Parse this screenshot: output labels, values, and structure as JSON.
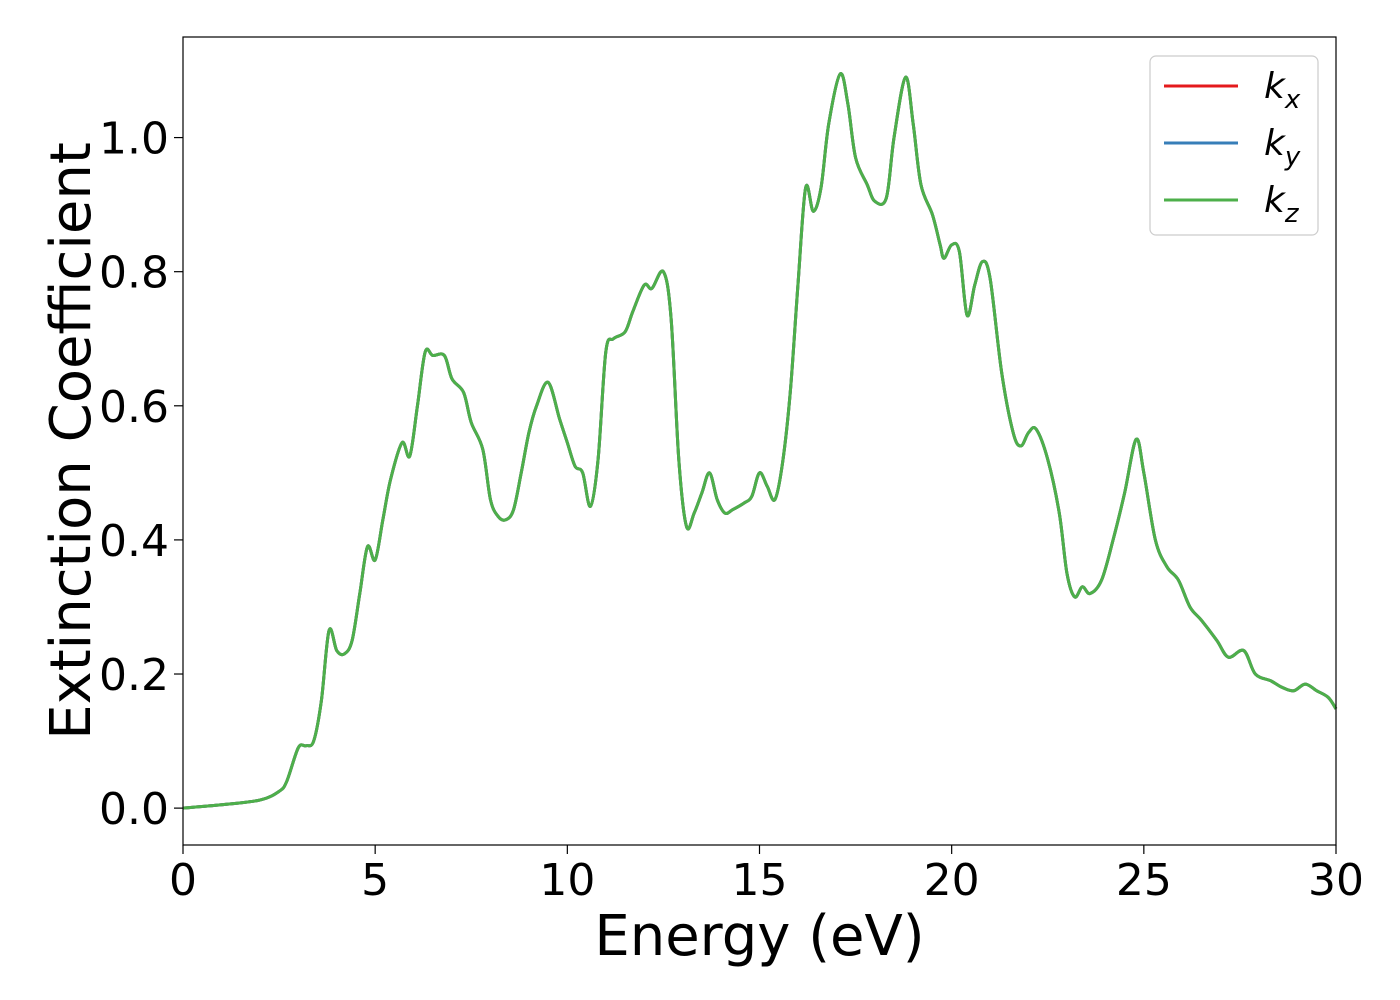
{
  "chart_data": {
    "type": "line",
    "xlabel": "Energy (eV)",
    "ylabel": "Extinction Coefficient",
    "xlim": [
      0,
      30
    ],
    "ylim": [
      -0.055,
      1.15
    ],
    "xticks": [
      0,
      5,
      10,
      15,
      20,
      25,
      30
    ],
    "xtick_labels": [
      "0",
      "5",
      "10",
      "15",
      "20",
      "25",
      "30"
    ],
    "yticks": [
      0.0,
      0.2,
      0.4,
      0.6,
      0.8,
      1.0
    ],
    "ytick_labels": [
      "0.0",
      "0.2",
      "0.4",
      "0.6",
      "0.8",
      "1.0"
    ],
    "grid": false,
    "legend_position": "top-right",
    "series": [
      {
        "name": "k",
        "subscript": "x",
        "color": "#e41a1c"
      },
      {
        "name": "k",
        "subscript": "y",
        "color": "#377eb8"
      },
      {
        "name": "k",
        "subscript": "z",
        "color": "#4daf4a"
      }
    ],
    "x": [
      0,
      1.0,
      2.0,
      2.5,
      2.7,
      3.0,
      3.2,
      3.4,
      3.6,
      3.8,
      4.0,
      4.2,
      4.4,
      4.6,
      4.8,
      5.0,
      5.2,
      5.4,
      5.7,
      5.9,
      6.1,
      6.3,
      6.5,
      6.8,
      7.0,
      7.3,
      7.5,
      7.8,
      8.0,
      8.2,
      8.4,
      8.6,
      8.8,
      9.0,
      9.2,
      9.5,
      9.8,
      10.0,
      10.2,
      10.4,
      10.6,
      10.8,
      11.0,
      11.2,
      11.5,
      11.7,
      12.0,
      12.2,
      12.5,
      12.7,
      12.9,
      13.1,
      13.3,
      13.5,
      13.7,
      13.9,
      14.1,
      14.3,
      14.6,
      14.8,
      15.0,
      15.2,
      15.4,
      15.6,
      15.8,
      16.0,
      16.2,
      16.4,
      16.6,
      16.8,
      17.1,
      17.3,
      17.5,
      17.8,
      18.0,
      18.3,
      18.5,
      18.8,
      19.0,
      19.2,
      19.5,
      19.7,
      19.8,
      20.0,
      20.2,
      20.4,
      20.6,
      20.8,
      21.0,
      21.3,
      21.6,
      21.8,
      22.0,
      22.2,
      22.5,
      22.8,
      23.0,
      23.2,
      23.4,
      23.6,
      23.9,
      24.2,
      24.5,
      24.8,
      25.0,
      25.3,
      25.6,
      25.9,
      26.2,
      26.5,
      26.9,
      27.2,
      27.6,
      27.9,
      28.3,
      28.6,
      28.9,
      29.2,
      29.5,
      29.8,
      30.0
    ],
    "y": [
      0.0,
      0.005,
      0.012,
      0.025,
      0.04,
      0.09,
      0.093,
      0.1,
      0.16,
      0.265,
      0.235,
      0.23,
      0.25,
      0.32,
      0.39,
      0.37,
      0.43,
      0.49,
      0.545,
      0.525,
      0.6,
      0.68,
      0.675,
      0.675,
      0.64,
      0.62,
      0.575,
      0.535,
      0.46,
      0.435,
      0.43,
      0.445,
      0.5,
      0.56,
      0.6,
      0.635,
      0.58,
      0.545,
      0.51,
      0.5,
      0.45,
      0.52,
      0.68,
      0.7,
      0.71,
      0.74,
      0.78,
      0.775,
      0.8,
      0.73,
      0.52,
      0.42,
      0.44,
      0.47,
      0.5,
      0.46,
      0.44,
      0.445,
      0.455,
      0.465,
      0.5,
      0.48,
      0.46,
      0.515,
      0.62,
      0.78,
      0.925,
      0.89,
      0.925,
      1.02,
      1.095,
      1.05,
      0.97,
      0.93,
      0.905,
      0.91,
      1.0,
      1.09,
      1.02,
      0.93,
      0.885,
      0.84,
      0.82,
      0.84,
      0.83,
      0.735,
      0.78,
      0.815,
      0.79,
      0.65,
      0.56,
      0.54,
      0.56,
      0.565,
      0.52,
      0.44,
      0.35,
      0.315,
      0.33,
      0.32,
      0.34,
      0.4,
      0.47,
      0.55,
      0.5,
      0.4,
      0.36,
      0.34,
      0.3,
      0.28,
      0.25,
      0.225,
      0.235,
      0.2,
      0.19,
      0.18,
      0.175,
      0.185,
      0.175,
      0.165,
      0.148
    ]
  }
}
